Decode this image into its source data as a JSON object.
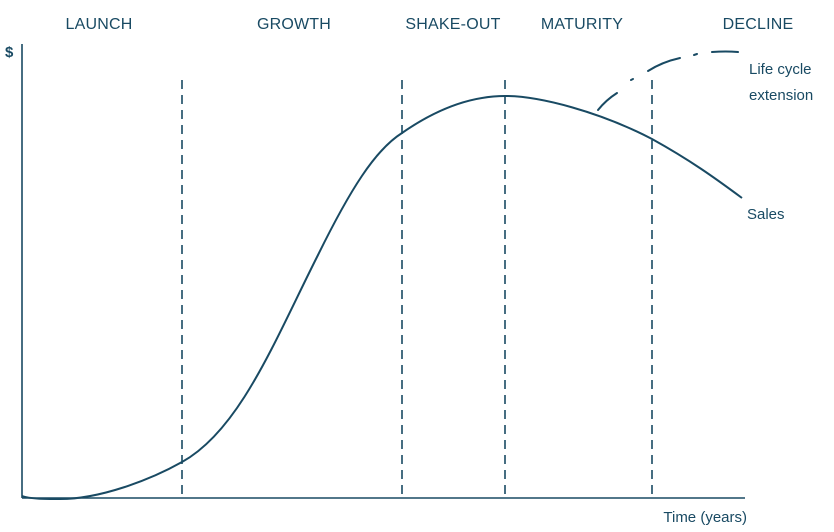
{
  "colors": {
    "ink": "#194a63"
  },
  "stages": [
    {
      "label": "LAUNCH"
    },
    {
      "label": "GROWTH"
    },
    {
      "label": "SHAKE-OUT"
    },
    {
      "label": "MATURITY"
    },
    {
      "label": "DECLINE"
    }
  ],
  "axes": {
    "y_label": "$",
    "x_label": "Time (years)"
  },
  "curves": {
    "sales_label": "Sales",
    "extension_label_line1": "Life cycle",
    "extension_label_line2": "extension"
  }
}
